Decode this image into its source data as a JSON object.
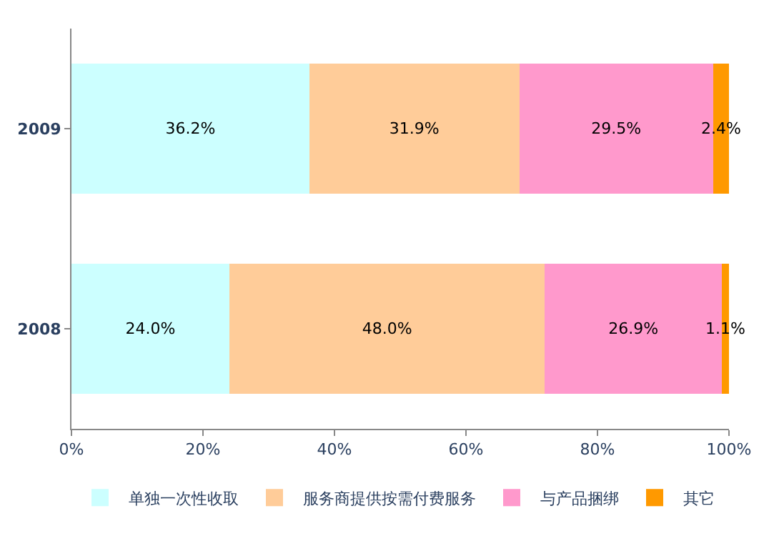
{
  "chart_data": {
    "type": "bar",
    "orientation": "horizontal",
    "stacked": true,
    "categories": [
      "2009",
      "2008"
    ],
    "series": [
      {
        "name": "单独一次性收取",
        "color": "#ccffff",
        "values": [
          36.2,
          24.0
        ],
        "value_labels": [
          "36.2%",
          "24.0%"
        ]
      },
      {
        "name": "服务商提供按需付费服务",
        "color": "#ffcc99",
        "values": [
          31.9,
          48.0
        ],
        "value_labels": [
          "31.9%",
          "48.0%"
        ]
      },
      {
        "name": "与产品捆绑",
        "color": "#ff99cc",
        "values": [
          29.5,
          26.9
        ],
        "value_labels": [
          "29.5%",
          "26.9%"
        ]
      },
      {
        "name": "其它",
        "color": "#ff9900",
        "values": [
          2.4,
          1.1
        ],
        "value_labels": [
          "2.4%",
          "1.1%"
        ]
      }
    ],
    "xlim": [
      0,
      100
    ],
    "xticks": [
      {
        "value": 0,
        "label": "0%"
      },
      {
        "value": 20,
        "label": "20%"
      },
      {
        "value": 40,
        "label": "40%"
      },
      {
        "value": 60,
        "label": "60%"
      },
      {
        "value": 80,
        "label": "80%"
      },
      {
        "value": 100,
        "label": "100%"
      }
    ],
    "legend": "bottom"
  }
}
